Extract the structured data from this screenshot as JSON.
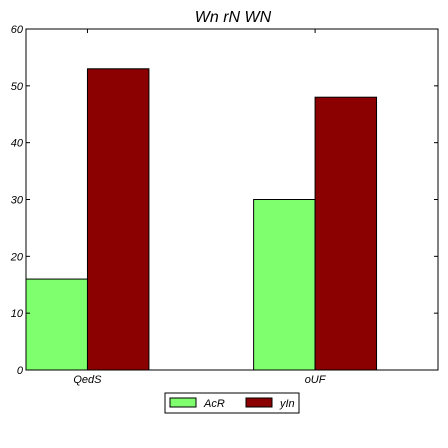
{
  "chart_data": {
    "type": "bar",
    "title": "Wn rN WN",
    "xlabel": "",
    "ylabel": "",
    "categories": [
      "QedS",
      "oUF"
    ],
    "series": [
      {
        "name": "AcR",
        "values": [
          16,
          30
        ],
        "color": "#80ff6e"
      },
      {
        "name": "yIn",
        "values": [
          53,
          48
        ],
        "color": "#8b0000"
      }
    ],
    "ylim": [
      0,
      60
    ],
    "yticks": [
      "0",
      "10",
      "20",
      "30",
      "40",
      "50",
      "60"
    ],
    "grid": false,
    "legend_position": "bottom-center"
  }
}
